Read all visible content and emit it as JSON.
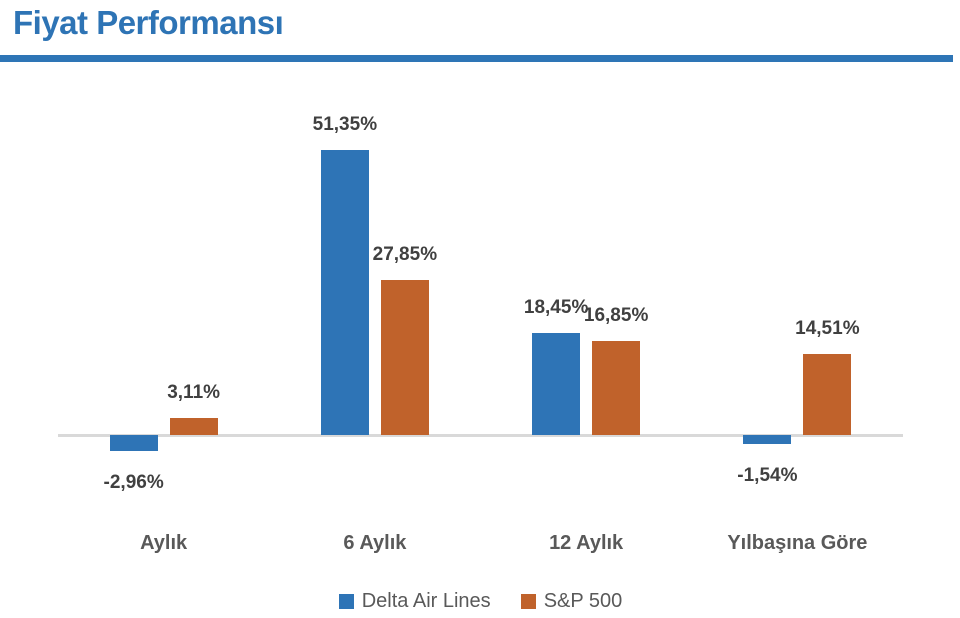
{
  "title": "Fiyat Performansı",
  "colors": {
    "title": "#2E74B5",
    "title_underline": "#2E75B6",
    "axis_line": "#D9D9D9",
    "value_label": "#404040",
    "category_label": "#595959",
    "legend_text": "#595959"
  },
  "chart_data": {
    "type": "bar",
    "title": "Fiyat Performansı",
    "xlabel": "",
    "ylabel": "",
    "categories": [
      "Aylık",
      "6 Aylık",
      "12 Aylık",
      "Yılbaşına Göre"
    ],
    "series": [
      {
        "name": "Delta Air Lines",
        "color": "#2E74B6",
        "values": [
          -2.96,
          51.35,
          18.45,
          -1.54
        ],
        "labels": [
          "-2,96%",
          "51,35%",
          "18,45%",
          "-1,54%"
        ]
      },
      {
        "name": "S&P 500",
        "color": "#C0622B",
        "values": [
          3.11,
          27.85,
          16.85,
          14.51
        ],
        "labels": [
          "3,11%",
          "27,85%",
          "16,85%",
          "14,51%"
        ]
      }
    ],
    "ylim": [
      -10,
      55
    ],
    "grid": false,
    "y_axis_visible": false,
    "data_labels": true,
    "decimal_separator": ",",
    "legend_position": "bottom"
  }
}
